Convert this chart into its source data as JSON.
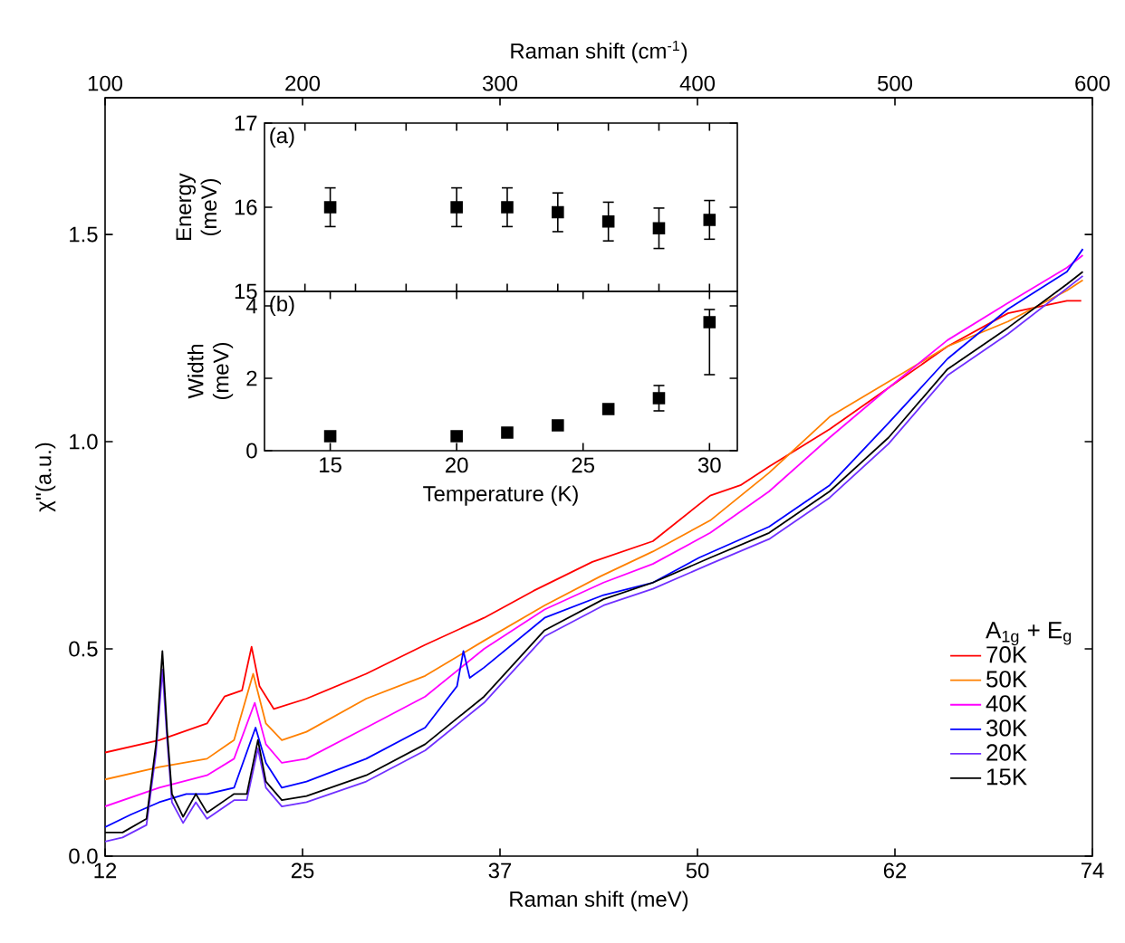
{
  "chart_data": [
    {
      "type": "line",
      "xlabel": "Raman shift (meV)",
      "ylabel": "χ''(a.u.)",
      "x2label": "Raman shift (cm$^{-1}$)",
      "legend_title": "A$_{1g}$ + E$_{g}$",
      "legend": "bottom right",
      "marker": "none",
      "xlim": [
        12.4,
        74.4
      ],
      "xticks": [
        {
          "value": 12.4,
          "label": "12"
        },
        {
          "value": 24.8,
          "label": "25"
        },
        {
          "value": 37.2,
          "label": "37"
        },
        {
          "value": 49.6,
          "label": "50"
        },
        {
          "value": 62,
          "label": "62"
        },
        {
          "value": 74.4,
          "label": "74"
        }
      ],
      "x2lim": [
        100,
        600
      ],
      "x2ticks": [
        100,
        200,
        300,
        400,
        500,
        600
      ],
      "ylim": [
        0,
        1.83
      ],
      "yticks": [
        {
          "value": 0,
          "label": "0.0"
        },
        {
          "value": 0.5,
          "label": "0.5"
        },
        {
          "value": 1,
          "label": "1.0"
        },
        {
          "value": 1.5,
          "label": "1.5"
        }
      ],
      "series": [
        {
          "name": "70K",
          "color": "#ff0000",
          "x": [
            12.4,
            15.8,
            18.8,
            19.9,
            21.0,
            21.6,
            22.1,
            23.0,
            25.05,
            28.8,
            32.5,
            36.2,
            39.3,
            43.0,
            46.8,
            50.4,
            52.3,
            54.1,
            57.9,
            61.6,
            65.3,
            69.1,
            72.8,
            73.7
          ],
          "values": [
            0.25,
            0.28,
            0.32,
            0.385,
            0.4,
            0.505,
            0.41,
            0.355,
            0.38,
            0.44,
            0.51,
            0.575,
            0.64,
            0.71,
            0.76,
            0.87,
            0.895,
            0.94,
            1.03,
            1.13,
            1.23,
            1.31,
            1.34,
            1.34
          ]
        },
        {
          "name": "50K",
          "color": "#ff8000",
          "x": [
            12.4,
            15.8,
            18.8,
            20.5,
            21.7,
            22.5,
            23.5,
            25.05,
            28.8,
            32.5,
            36.2,
            40.0,
            43.5,
            46.8,
            50.4,
            54.1,
            57.9,
            61.6,
            65.3,
            69.1,
            72.8,
            73.8
          ],
          "values": [
            0.185,
            0.215,
            0.235,
            0.28,
            0.44,
            0.32,
            0.28,
            0.3,
            0.38,
            0.435,
            0.52,
            0.605,
            0.675,
            0.735,
            0.81,
            0.925,
            1.06,
            1.145,
            1.23,
            1.29,
            1.365,
            1.39
          ]
        },
        {
          "name": "40K",
          "color": "#ff00ff",
          "x": [
            12.4,
            15.8,
            18.8,
            20.5,
            21.8,
            22.5,
            23.5,
            25.05,
            28.8,
            32.5,
            36.2,
            40.0,
            43.7,
            46.8,
            50.4,
            54.1,
            57.9,
            61.6,
            65.3,
            69.1,
            72.8,
            73.8
          ],
          "values": [
            0.12,
            0.165,
            0.195,
            0.235,
            0.37,
            0.27,
            0.225,
            0.235,
            0.31,
            0.385,
            0.5,
            0.595,
            0.66,
            0.705,
            0.78,
            0.88,
            1.01,
            1.13,
            1.245,
            1.335,
            1.42,
            1.45
          ]
        },
        {
          "name": "30K",
          "color": "#0000ff",
          "x": [
            12.4,
            14.0,
            15.8,
            17.5,
            18.8,
            20.5,
            21.85,
            22.5,
            23.5,
            25.05,
            28.8,
            32.5,
            34.5,
            34.9,
            35.3,
            36.2,
            40.0,
            43.7,
            46.8,
            49.7,
            54.1,
            57.9,
            61.6,
            65.3,
            69.1,
            72.8,
            73.8
          ],
          "values": [
            0.07,
            0.1,
            0.13,
            0.15,
            0.15,
            0.165,
            0.31,
            0.225,
            0.165,
            0.18,
            0.235,
            0.31,
            0.41,
            0.495,
            0.43,
            0.455,
            0.575,
            0.63,
            0.66,
            0.72,
            0.795,
            0.895,
            1.045,
            1.2,
            1.32,
            1.41,
            1.465
          ]
        },
        {
          "name": "20K",
          "color": "#7030ff",
          "x": [
            12.4,
            13.5,
            15.0,
            15.6,
            16.0,
            16.3,
            16.6,
            17.3,
            18.1,
            18.8,
            20.5,
            21.3,
            22.0,
            22.5,
            23.5,
            25.05,
            28.8,
            32.5,
            36.2,
            40.0,
            43.7,
            46.8,
            50.4,
            54.1,
            57.9,
            61.6,
            65.3,
            69.1,
            72.8,
            73.8
          ],
          "values": [
            0.035,
            0.045,
            0.075,
            0.25,
            0.45,
            0.28,
            0.13,
            0.08,
            0.13,
            0.09,
            0.135,
            0.135,
            0.26,
            0.165,
            0.12,
            0.13,
            0.18,
            0.255,
            0.37,
            0.53,
            0.605,
            0.645,
            0.705,
            0.765,
            0.865,
            0.995,
            1.16,
            1.26,
            1.37,
            1.4
          ]
        },
        {
          "name": "15K",
          "color": "#000000",
          "x": [
            12.4,
            13.5,
            15.0,
            15.6,
            16.0,
            16.3,
            16.6,
            17.3,
            18.1,
            18.8,
            20.5,
            21.3,
            22.0,
            22.5,
            23.5,
            25.05,
            28.8,
            32.5,
            36.2,
            40.0,
            43.7,
            46.8,
            50.4,
            54.1,
            57.9,
            61.6,
            65.3,
            69.1,
            72.8,
            73.8
          ],
          "values": [
            0.057,
            0.057,
            0.09,
            0.27,
            0.495,
            0.3,
            0.15,
            0.095,
            0.15,
            0.105,
            0.15,
            0.15,
            0.28,
            0.18,
            0.135,
            0.145,
            0.195,
            0.27,
            0.385,
            0.545,
            0.62,
            0.66,
            0.72,
            0.78,
            0.88,
            1.01,
            1.175,
            1.275,
            1.38,
            1.41
          ]
        }
      ]
    },
    {
      "type": "scatter",
      "ylabel": "Energy (meV)",
      "annotations": [
        "(a)"
      ],
      "marker": "square",
      "tick_labels": "y",
      "xlim": [
        12.4,
        31.1
      ],
      "ylim": [
        15,
        17
      ],
      "yticks": [
        15,
        16,
        17
      ],
      "x": [
        15,
        20,
        22,
        24,
        26,
        28,
        30
      ],
      "values": [
        16.0,
        16.0,
        16.0,
        15.94,
        15.83,
        15.75,
        15.85
      ],
      "errors": [
        0.23,
        0.23,
        0.23,
        0.23,
        0.23,
        0.24,
        0.23
      ],
      "color": "#000000"
    },
    {
      "type": "scatter",
      "xlabel": "Temperature (K)",
      "ylabel": "Width (meV)",
      "annotations": [
        "(b)"
      ],
      "marker": "square",
      "xlim": [
        12.4,
        31.1
      ],
      "xticks": [
        15,
        20,
        25,
        30
      ],
      "ylim": [
        0,
        4.4
      ],
      "yticks": [
        0,
        2,
        4
      ],
      "x": [
        15,
        20,
        22,
        24,
        26,
        28,
        30
      ],
      "values": [
        0.4,
        0.4,
        0.5,
        0.7,
        1.15,
        1.45,
        3.55
      ],
      "errors": [
        null,
        null,
        null,
        null,
        null,
        0.35,
        [
          2.1,
          3.9
        ]
      ],
      "color": "#000000"
    }
  ]
}
